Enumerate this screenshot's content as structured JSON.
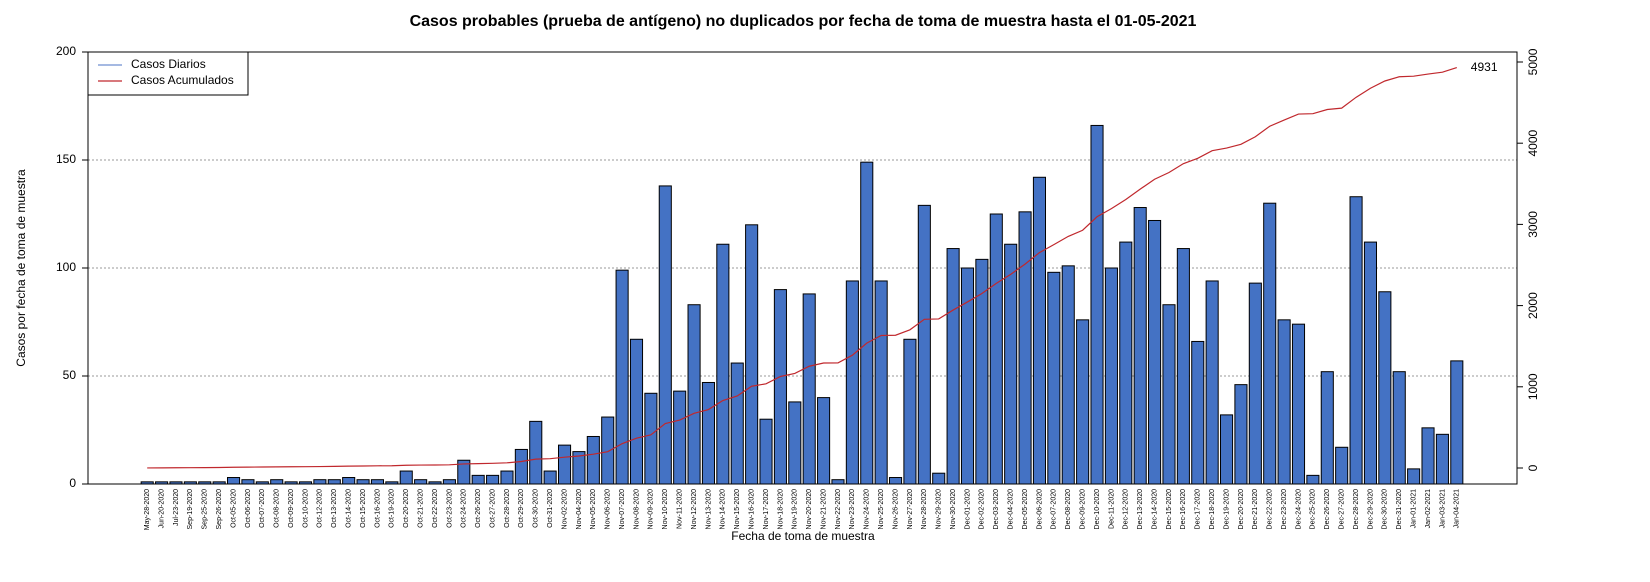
{
  "chart_data": {
    "type": "bar",
    "title": "Casos probables (prueba de antígeno) no duplicados por fecha de toma de muestra hasta el 01-05-2021",
    "x_label": "Fecha de toma de muestra",
    "y_label": "Casos por fecha de toma de muestra",
    "categories": [
      "May-28-2020",
      "Jun-20-2020",
      "Jul-23-2020",
      "Sep-19-2020",
      "Sep-25-2020",
      "Sep-26-2020",
      "Oct-05-2020",
      "Oct-06-2020",
      "Oct-07-2020",
      "Oct-08-2020",
      "Oct-09-2020",
      "Oct-10-2020",
      "Oct-12-2020",
      "Oct-13-2020",
      "Oct-14-2020",
      "Oct-15-2020",
      "Oct-16-2020",
      "Oct-19-2020",
      "Oct-20-2020",
      "Oct-21-2020",
      "Oct-22-2020",
      "Oct-23-2020",
      "Oct-24-2020",
      "Oct-26-2020",
      "Oct-27-2020",
      "Oct-28-2020",
      "Oct-29-2020",
      "Oct-30-2020",
      "Oct-31-2020",
      "Nov-02-2020",
      "Nov-04-2020",
      "Nov-05-2020",
      "Nov-06-2020",
      "Nov-07-2020",
      "Nov-08-2020",
      "Nov-09-2020",
      "Nov-10-2020",
      "Nov-11-2020",
      "Nov-12-2020",
      "Nov-13-2020",
      "Nov-14-2020",
      "Nov-15-2020",
      "Nov-16-2020",
      "Nov-17-2020",
      "Nov-18-2020",
      "Nov-19-2020",
      "Nov-20-2020",
      "Nov-21-2020",
      "Nov-22-2020",
      "Nov-23-2020",
      "Nov-24-2020",
      "Nov-25-2020",
      "Nov-26-2020",
      "Nov-27-2020",
      "Nov-28-2020",
      "Nov-29-2020",
      "Nov-30-2020",
      "Dec-01-2020",
      "Dec-02-2020",
      "Dec-03-2020",
      "Dec-04-2020",
      "Dec-05-2020",
      "Dec-06-2020",
      "Dec-07-2020",
      "Dec-08-2020",
      "Dec-09-2020",
      "Dec-10-2020",
      "Dec-11-2020",
      "Dec-12-2020",
      "Dec-13-2020",
      "Dec-14-2020",
      "Dec-15-2020",
      "Dec-16-2020",
      "Dec-17-2020",
      "Dec-18-2020",
      "Dec-19-2020",
      "Dec-20-2020",
      "Dec-21-2020",
      "Dec-22-2020",
      "Dec-23-2020",
      "Dec-24-2020",
      "Dec-25-2020",
      "Dec-26-2020",
      "Dec-27-2020",
      "Dec-28-2020",
      "Dec-29-2020",
      "Dec-30-2020",
      "Dec-31-2020",
      "Jan-01-2021",
      "Jan-02-2021",
      "Jan-03-2021",
      "Jan-04-2021"
    ],
    "series": [
      {
        "name": "Casos Diarios",
        "type": "bar",
        "color": "#4472c4",
        "legend_color": "#6f8fd0",
        "values": [
          1,
          1,
          1,
          1,
          1,
          1,
          3,
          2,
          1,
          2,
          1,
          1,
          2,
          2,
          3,
          2,
          2,
          1,
          6,
          2,
          1,
          2,
          11,
          4,
          4,
          6,
          16,
          29,
          6,
          18,
          15,
          22,
          31,
          99,
          67,
          42,
          138,
          43,
          83,
          47,
          111,
          56,
          120,
          30,
          90,
          38,
          88,
          40,
          2,
          94,
          149,
          94,
          3,
          67,
          129,
          5,
          109,
          100,
          104,
          125,
          111,
          126,
          142,
          98,
          101,
          76,
          166,
          100,
          112,
          128,
          122,
          83,
          109,
          66,
          94,
          32,
          46,
          93,
          130,
          76,
          74,
          4,
          52,
          17,
          133,
          112,
          89,
          52,
          7,
          26,
          23,
          57
        ]
      },
      {
        "name": "Casos Acumulados",
        "type": "line",
        "axis": "y2",
        "color": "#c0282d",
        "values": [
          1,
          2,
          3,
          4,
          5,
          6,
          9,
          11,
          12,
          14,
          15,
          16,
          18,
          20,
          23,
          25,
          27,
          28,
          34,
          36,
          37,
          39,
          50,
          54,
          58,
          64,
          80,
          109,
          115,
          133,
          148,
          170,
          201,
          300,
          367,
          409,
          547,
          590,
          673,
          720,
          831,
          887,
          1007,
          1037,
          1127,
          1165,
          1253,
          1293,
          1295,
          1389,
          1538,
          1632,
          1635,
          1702,
          1831,
          1836,
          1945,
          2045,
          2149,
          2274,
          2385,
          2511,
          2653,
          2751,
          2852,
          2928,
          3094,
          3194,
          3306,
          3434,
          3556,
          3639,
          3748,
          3814,
          3908,
          3940,
          3986,
          4079,
          4209,
          4285,
          4359,
          4363,
          4415,
          4432,
          4565,
          4677,
          4766,
          4818,
          4825,
          4851,
          4874,
          4931
        ]
      }
    ],
    "ylim": [
      0,
      200
    ],
    "yticks": [
      0,
      50,
      100,
      150,
      200
    ],
    "y2lim": [
      -197,
      5123
    ],
    "y2ticks": [
      0,
      1000,
      2000,
      3000,
      4000,
      5000
    ],
    "grid": true,
    "legend_position": "top-left"
  }
}
